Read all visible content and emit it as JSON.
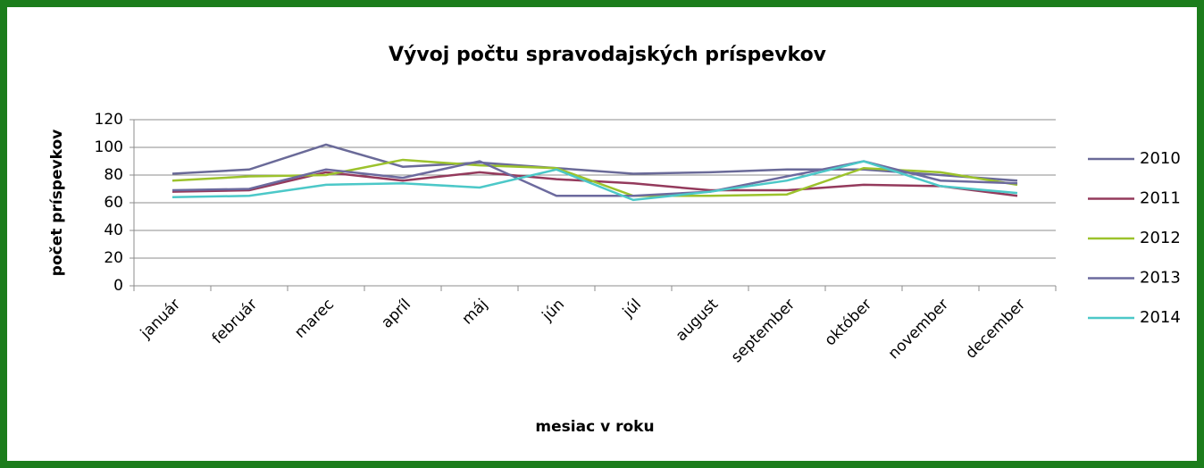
{
  "chart_data": {
    "type": "line",
    "title": "Vývoj počtu spravodajských príspevkov",
    "x_label": "mesiac v roku",
    "y_label": "počet príspevkov",
    "categories": [
      "január",
      "február",
      "marec",
      "apríl",
      "máj",
      "jún",
      "júl",
      "august",
      "september",
      "október",
      "november",
      "december"
    ],
    "ylim": [
      0,
      120
    ],
    "yticks": [
      0,
      20,
      40,
      60,
      80,
      100,
      120
    ],
    "grid": true,
    "legend": "right",
    "series": [
      {
        "name": "2010",
        "color": "#6a6a98",
        "values": [
          81,
          84,
          102,
          86,
          89,
          85,
          81,
          82,
          84,
          84,
          80,
          76
        ]
      },
      {
        "name": "2011",
        "color": "#943a5c",
        "values": [
          68,
          69,
          82,
          76,
          82,
          77,
          74,
          69,
          69,
          73,
          72,
          65
        ]
      },
      {
        "name": "2012",
        "color": "#9cc22c",
        "values": [
          76,
          79,
          80,
          91,
          87,
          85,
          65,
          65,
          66,
          85,
          82,
          73
        ]
      },
      {
        "name": "2013",
        "color": "#6c6a9e",
        "values": [
          69,
          70,
          84,
          78,
          90,
          65,
          65,
          68,
          79,
          90,
          76,
          74
        ]
      },
      {
        "name": "2014",
        "color": "#4cc8c8",
        "values": [
          64,
          65,
          73,
          74,
          71,
          84,
          62,
          68,
          76,
          90,
          72,
          67
        ]
      }
    ]
  }
}
